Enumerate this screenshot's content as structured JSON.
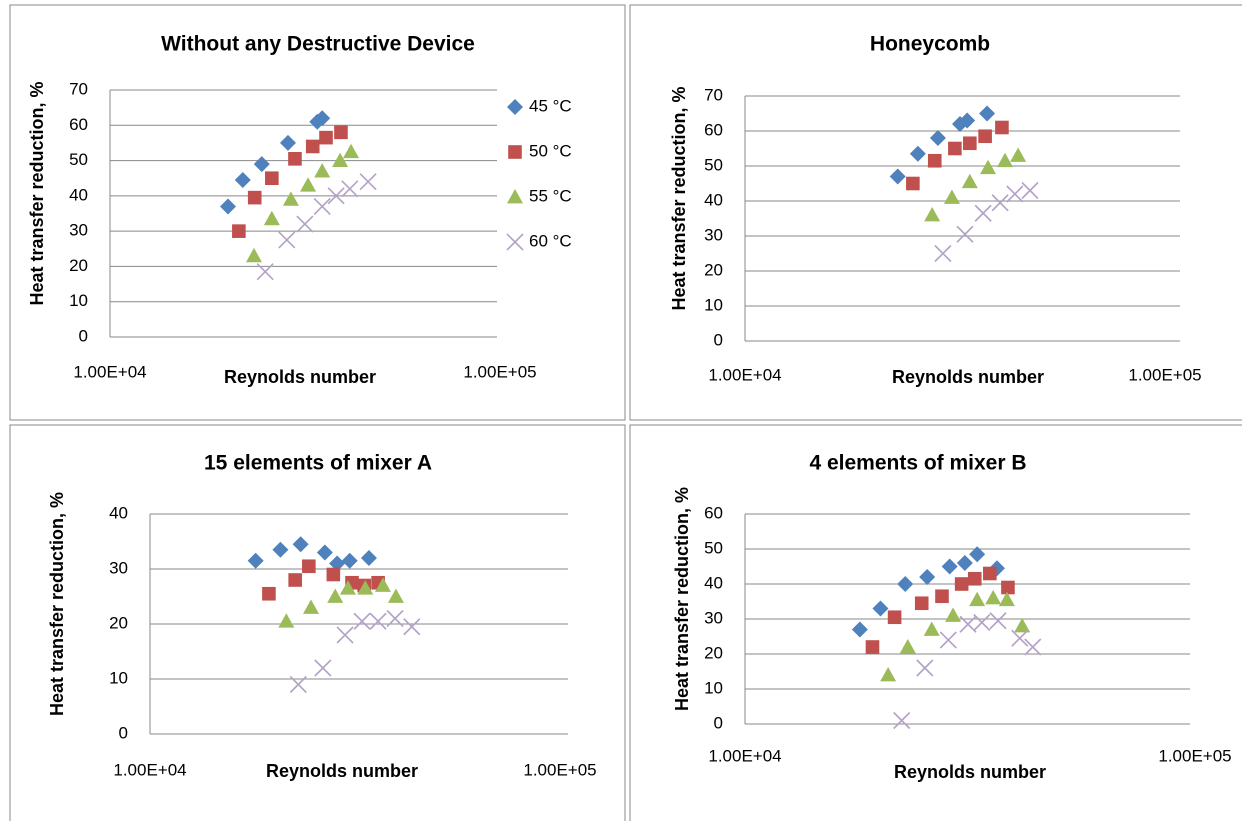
{
  "chart_data": [
    {
      "type": "scatter",
      "title": "Without any Destructive Device",
      "x_label": "Reynolds number",
      "y_label": "Heat transfer reduction, %",
      "xscale": "log",
      "xlim": [
        10000,
        100000
      ],
      "xticks": [
        {
          "value": 10000,
          "label": "1.00E+04"
        },
        {
          "value": 100000,
          "label": "1.00E+05"
        }
      ],
      "ylim": [
        0,
        70
      ],
      "yticks": [
        0,
        10,
        20,
        30,
        40,
        50,
        60,
        70
      ],
      "grid": true,
      "legend": "right",
      "series": [
        {
          "name": "45 °C",
          "color": "#4f81bd",
          "marker": "diamond",
          "x": [
            20070,
            21900,
            24500,
            28600,
            34000,
            35000
          ],
          "values": [
            37,
            44.5,
            49,
            55,
            61,
            62
          ]
        },
        {
          "name": "50 °C",
          "color": "#c0504d",
          "marker": "square",
          "x": [
            21400,
            23500,
            26000,
            29800,
            33100,
            35800,
            39100
          ],
          "values": [
            30,
            39.5,
            45,
            50.5,
            54,
            56.5,
            58
          ]
        },
        {
          "name": "55 °C",
          "color": "#9bbb59",
          "marker": "triangle",
          "x": [
            23400,
            26000,
            29100,
            32200,
            35000,
            38900,
            41500
          ],
          "values": [
            23,
            33.5,
            39,
            43,
            47,
            50,
            52.5
          ]
        },
        {
          "name": "60 °C",
          "color": "#b3a2c7",
          "marker": "x",
          "x": [
            25000,
            28400,
            31600,
            35000,
            38000,
            41200,
            45900
          ],
          "values": [
            18.5,
            27.5,
            32,
            37,
            40,
            42,
            44
          ]
        }
      ]
    },
    {
      "type": "scatter",
      "title": "Honeycomb",
      "x_label": "Reynolds number",
      "y_label": "Heat transfer reduction, %",
      "xscale": "log",
      "xlim": [
        10000,
        100000
      ],
      "xticks": [
        {
          "value": 10000,
          "label": "1.00E+04"
        },
        {
          "value": 100000,
          "label": "1.00E+05"
        }
      ],
      "ylim": [
        0,
        70
      ],
      "yticks": [
        0,
        10,
        20,
        30,
        40,
        50,
        60,
        70
      ],
      "grid": true,
      "series": [
        {
          "color": "#4f81bd",
          "marker": "diamond",
          "x": [
            23100,
            25800,
            28800,
            32500,
            33800,
            37700
          ],
          "values": [
            47,
            53.5,
            58,
            62,
            63,
            65
          ]
        },
        {
          "color": "#c0504d",
          "marker": "square",
          "x": [
            25100,
            28300,
            31600,
            34300,
            37300,
            40900
          ],
          "values": [
            45,
            51.5,
            55,
            56.5,
            58.5,
            61
          ]
        },
        {
          "color": "#9bbb59",
          "marker": "triangle",
          "x": [
            27900,
            31100,
            34300,
            37900,
            41600,
            44700
          ],
          "values": [
            36,
            41,
            45.5,
            49.5,
            51.5,
            53
          ]
        },
        {
          "color": "#b3a2c7",
          "marker": "x",
          "x": [
            29600,
            33400,
            36900,
            40500,
            43900,
            47700
          ],
          "values": [
            25,
            30.5,
            36.5,
            39.5,
            42,
            43
          ]
        }
      ]
    },
    {
      "type": "scatter",
      "title": "15 elements of mixer A",
      "x_label": "Reynolds number",
      "y_label": "Heat transfer reduction, %",
      "xscale": "log",
      "xlim": [
        10000,
        100000
      ],
      "xticks": [
        {
          "value": 10000,
          "label": "1.00E+04"
        },
        {
          "value": 100000,
          "label": "1.00E+05"
        }
      ],
      "ylim": [
        0,
        40
      ],
      "yticks": [
        0,
        10,
        20,
        30,
        40
      ],
      "grid": true,
      "series": [
        {
          "color": "#4f81bd",
          "marker": "diamond",
          "x": [
            18100,
            20800,
            23300,
            26700,
            28600,
            30700,
            34200
          ],
          "values": [
            31.5,
            33.5,
            34.5,
            33,
            31,
            31.5,
            32
          ]
        },
        {
          "color": "#c0504d",
          "marker": "square",
          "x": [
            19500,
            22600,
            24400,
            28000,
            31100,
            33300,
            36000
          ],
          "values": [
            25.5,
            28,
            30.5,
            29,
            27.5,
            27,
            27.5
          ]
        },
        {
          "color": "#9bbb59",
          "marker": "triangle",
          "x": [
            21500,
            24700,
            28300,
            30400,
            33500,
            37000,
            39800
          ],
          "values": [
            20.5,
            23,
            25,
            26.5,
            26.5,
            27,
            25
          ]
        },
        {
          "color": "#b3a2c7",
          "marker": "x",
          "x": [
            23000,
            26400,
            29900,
            32900,
            36000,
            39600,
            43500
          ],
          "values": [
            9,
            12,
            18,
            20.5,
            20.5,
            21,
            19.5
          ]
        }
      ]
    },
    {
      "type": "scatter",
      "title": "4 elements of mixer B",
      "x_label": "Reynolds number",
      "y_label": "Heat transfer reduction, %",
      "xscale": "log",
      "xlim": [
        10000,
        100000
      ],
      "xticks": [
        {
          "value": 10000,
          "label": "1.00E+04"
        },
        {
          "value": 100000,
          "label": "1.00E+05"
        }
      ],
      "ylim": [
        0,
        60
      ],
      "yticks": [
        0,
        10,
        20,
        30,
        40,
        50,
        60
      ],
      "grid": true,
      "series": [
        {
          "color": "#4f81bd",
          "marker": "diamond",
          "x": [
            18000,
            20000,
            22700,
            25400,
            28500,
            30800,
            32800,
            36300
          ],
          "values": [
            27,
            33,
            40,
            42,
            45,
            46,
            48.5,
            44.5
          ]
        },
        {
          "color": "#c0504d",
          "marker": "square",
          "x": [
            19200,
            21500,
            24700,
            27400,
            30300,
            32400,
            35000,
            38400
          ],
          "values": [
            22,
            30.5,
            34.5,
            36.5,
            40,
            41.5,
            43,
            39
          ]
        },
        {
          "color": "#9bbb59",
          "marker": "triangle",
          "x": [
            20800,
            23000,
            26000,
            29000,
            32800,
            35600,
            38200,
            41300
          ],
          "values": [
            14,
            22,
            27,
            31,
            35.5,
            36,
            35.5,
            28
          ]
        },
        {
          "color": "#b3a2c7",
          "marker": "x",
          "x": [
            22300,
            25100,
            28300,
            31300,
            33600,
            36500,
            40800,
            43600
          ],
          "values": [
            1,
            16,
            24,
            28.5,
            29,
            29.5,
            24.5,
            22
          ]
        }
      ]
    }
  ]
}
